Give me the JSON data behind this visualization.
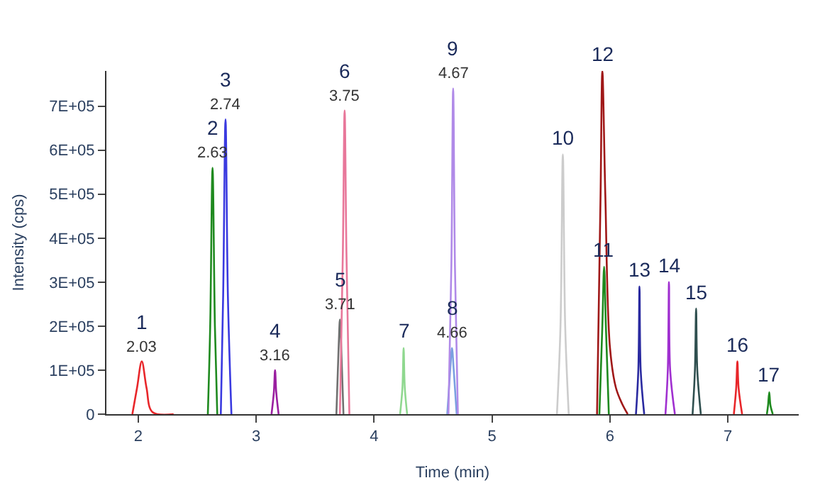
{
  "chart_data": {
    "type": "line",
    "xlabel": "Time (min)",
    "ylabel": "Intensity (cps)",
    "xlim": [
      1.73,
      7.6
    ],
    "ylim": [
      0,
      780000
    ],
    "xticks": [
      2,
      3,
      4,
      5,
      6,
      7
    ],
    "yticks": [
      {
        "value": 0,
        "label": "0"
      },
      {
        "value": 100000,
        "label": "1E+05"
      },
      {
        "value": 200000,
        "label": "2E+05"
      },
      {
        "value": 300000,
        "label": "3E+05"
      },
      {
        "value": 400000,
        "label": "4E+05"
      },
      {
        "value": 500000,
        "label": "5E+05"
      },
      {
        "value": 600000,
        "label": "6E+05"
      },
      {
        "value": 700000,
        "label": "7E+05"
      }
    ],
    "marker": "none",
    "line_style": "solid",
    "series": [
      {
        "color": "#e8262a",
        "x": [
          1.95,
          1.99,
          2.03,
          2.07,
          2.12,
          2.3
        ],
        "values": [
          0,
          60000,
          120000,
          60000,
          5000,
          0
        ]
      },
      {
        "color": "#1f8a1f",
        "x": [
          2.59,
          2.61,
          2.63,
          2.65,
          2.67
        ],
        "values": [
          0,
          200000,
          560000,
          200000,
          0
        ]
      },
      {
        "color": "#3a3ae0",
        "x": [
          2.7,
          2.72,
          2.74,
          2.76,
          2.79
        ],
        "values": [
          0,
          270000,
          670000,
          270000,
          0
        ]
      },
      {
        "color": "#9a1fa0",
        "x": [
          3.13,
          3.15,
          3.16,
          3.17,
          3.19
        ],
        "values": [
          0,
          50000,
          100000,
          50000,
          0
        ]
      },
      {
        "color": "#707070",
        "x": [
          3.68,
          3.7,
          3.71,
          3.72,
          3.74
        ],
        "values": [
          0,
          160000,
          215000,
          160000,
          0
        ]
      },
      {
        "color": "#e8779a",
        "x": [
          3.71,
          3.735,
          3.75,
          3.765,
          3.79
        ],
        "values": [
          0,
          370000,
          690000,
          370000,
          0
        ]
      },
      {
        "color": "#8fd88f",
        "x": [
          4.22,
          4.24,
          4.25,
          4.26,
          4.28
        ],
        "values": [
          0,
          60000,
          150000,
          60000,
          0
        ]
      },
      {
        "color": "#7aa0e0",
        "x": [
          4.62,
          4.645,
          4.66,
          4.675,
          4.7
        ],
        "values": [
          0,
          100000,
          150000,
          100000,
          0
        ]
      },
      {
        "color": "#b08ae8",
        "x": [
          4.63,
          4.655,
          4.67,
          4.685,
          4.71
        ],
        "values": [
          0,
          340000,
          740000,
          340000,
          0
        ]
      },
      {
        "color": "#cccccc",
        "x": [
          5.55,
          5.58,
          5.6,
          5.62,
          5.65
        ],
        "values": [
          0,
          200000,
          590000,
          200000,
          0
        ]
      },
      {
        "color": "#1f8a1f",
        "x": [
          5.91,
          5.935,
          5.95,
          5.965,
          5.99
        ],
        "values": [
          0,
          200000,
          335000,
          200000,
          0
        ]
      },
      {
        "color": "#a01818",
        "x": [
          5.89,
          5.92,
          5.935,
          5.96,
          6.0,
          6.05,
          6.1,
          6.15
        ],
        "values": [
          0,
          500000,
          780000,
          500000,
          150000,
          60000,
          25000,
          0
        ]
      },
      {
        "color": "#2a2aa0",
        "x": [
          6.22,
          6.24,
          6.25,
          6.26,
          6.29
        ],
        "values": [
          0,
          100000,
          290000,
          100000,
          0
        ]
      },
      {
        "color": "#a030d0",
        "x": [
          6.47,
          6.49,
          6.5,
          6.51,
          6.55
        ],
        "values": [
          0,
          100000,
          300000,
          100000,
          0
        ]
      },
      {
        "color": "#2f4f4f",
        "x": [
          6.7,
          6.72,
          6.73,
          6.74,
          6.77
        ],
        "values": [
          0,
          100000,
          240000,
          100000,
          0
        ]
      },
      {
        "color": "#e8262a",
        "x": [
          7.05,
          7.07,
          7.08,
          7.09,
          7.12
        ],
        "values": [
          0,
          60000,
          120000,
          60000,
          0
        ]
      },
      {
        "color": "#1f8a1f",
        "x": [
          7.33,
          7.34,
          7.35,
          7.36,
          7.38
        ],
        "values": [
          0,
          20000,
          50000,
          20000,
          0
        ]
      }
    ],
    "annotations": [
      {
        "text": "1",
        "x": 2.03,
        "y": 120000
      },
      {
        "text": "2.03",
        "x": 2.03,
        "y": 120000
      },
      {
        "text": "2",
        "x": 2.63,
        "y": 560000
      },
      {
        "text": "2.63",
        "x": 2.63,
        "y": 560000
      },
      {
        "text": "3",
        "x": 2.74,
        "y": 670000
      },
      {
        "text": "2.74",
        "x": 2.74,
        "y": 670000
      },
      {
        "text": "4",
        "x": 3.16,
        "y": 100000
      },
      {
        "text": "3.16",
        "x": 3.16,
        "y": 100000
      },
      {
        "text": "5",
        "x": 3.71,
        "y": 215000
      },
      {
        "text": "3.71",
        "x": 3.71,
        "y": 215000
      },
      {
        "text": "6",
        "x": 3.75,
        "y": 690000
      },
      {
        "text": "3.75",
        "x": 3.75,
        "y": 690000
      },
      {
        "text": "7",
        "x": 4.25,
        "y": 150000
      },
      {
        "text": "8",
        "x": 4.66,
        "y": 150000
      },
      {
        "text": "4.66",
        "x": 4.66,
        "y": 150000
      },
      {
        "text": "9",
        "x": 4.67,
        "y": 740000
      },
      {
        "text": "4.67",
        "x": 4.67,
        "y": 740000
      },
      {
        "text": "10",
        "x": 5.6,
        "y": 590000
      },
      {
        "text": "11",
        "x": 5.95,
        "y": 335000
      },
      {
        "text": "12",
        "x": 5.935,
        "y": 780000
      },
      {
        "text": "13",
        "x": 6.25,
        "y": 290000
      },
      {
        "text": "14",
        "x": 6.5,
        "y": 300000
      },
      {
        "text": "15",
        "x": 6.73,
        "y": 240000
      },
      {
        "text": "16",
        "x": 7.08,
        "y": 120000
      },
      {
        "text": "17",
        "x": 7.35,
        "y": 50000
      }
    ]
  }
}
